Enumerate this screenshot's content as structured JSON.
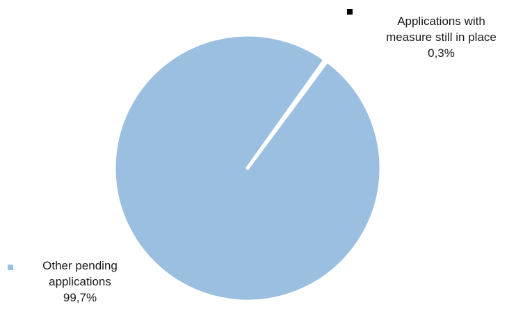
{
  "chart_data": {
    "type": "pie",
    "title": "",
    "slices": [
      {
        "label_lines": [
          "Applications with",
          "measure still in place"
        ],
        "label": "Applications with measure still in place",
        "value": 0.3,
        "value_label": "0,3%",
        "color": "#000000"
      },
      {
        "label_lines": [
          "Other pending",
          "applications"
        ],
        "label": "Other pending applications",
        "value": 99.7,
        "value_label": "99,7%",
        "color": "#9bbfe0"
      }
    ],
    "legend_placement": "labels-beside-slices"
  }
}
